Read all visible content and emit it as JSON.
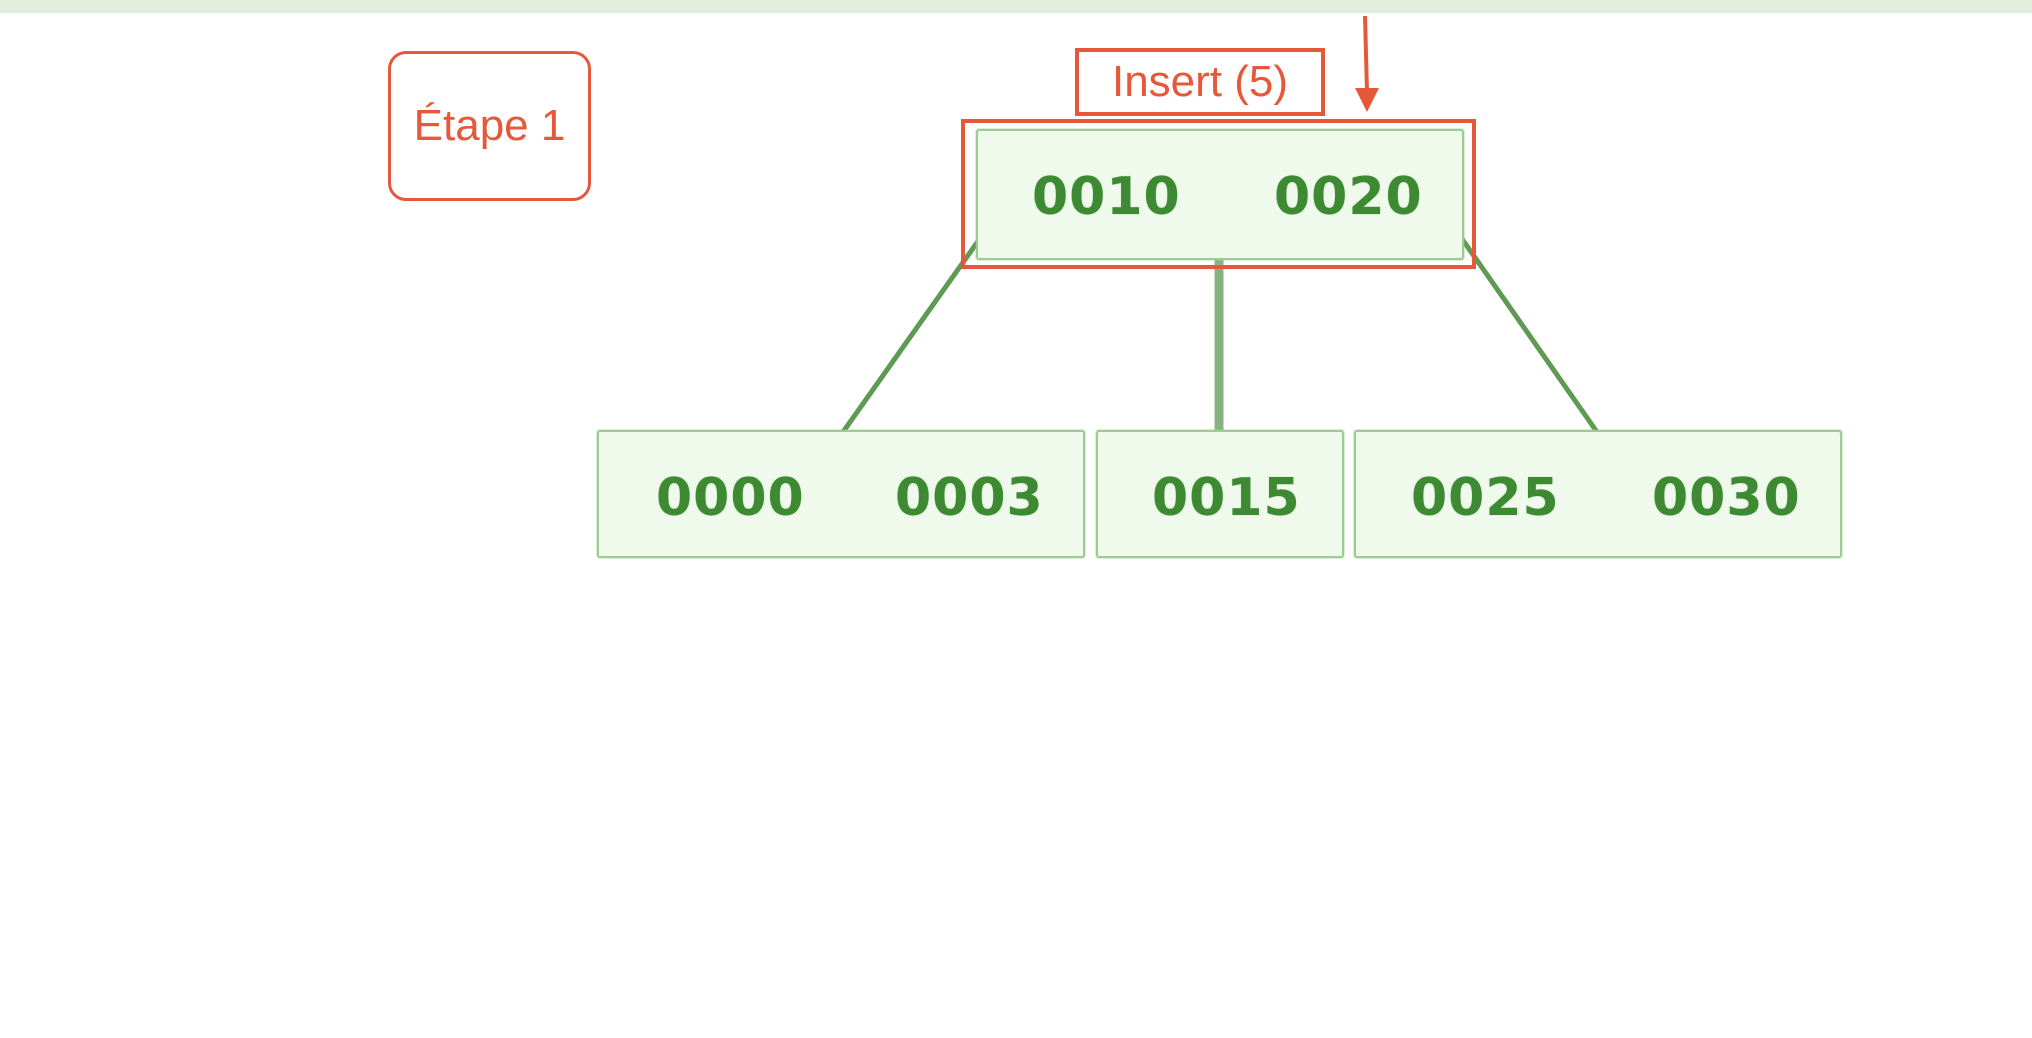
{
  "step_label": "Étape 1",
  "operation_label": "Insert (5)",
  "tree": {
    "root": {
      "keys": [
        "0010",
        "0020"
      ]
    },
    "children": [
      {
        "keys": [
          "0000",
          "0003"
        ]
      },
      {
        "keys": [
          "0015"
        ]
      },
      {
        "keys": [
          "0025",
          "0030"
        ]
      }
    ]
  },
  "colors": {
    "annotation": "#e5583a",
    "node_border": "#9ccc94",
    "node_fill": "#effaec",
    "key_text": "#3e8a33",
    "edge": "#5f9a55",
    "top_band": "#e3efde"
  }
}
